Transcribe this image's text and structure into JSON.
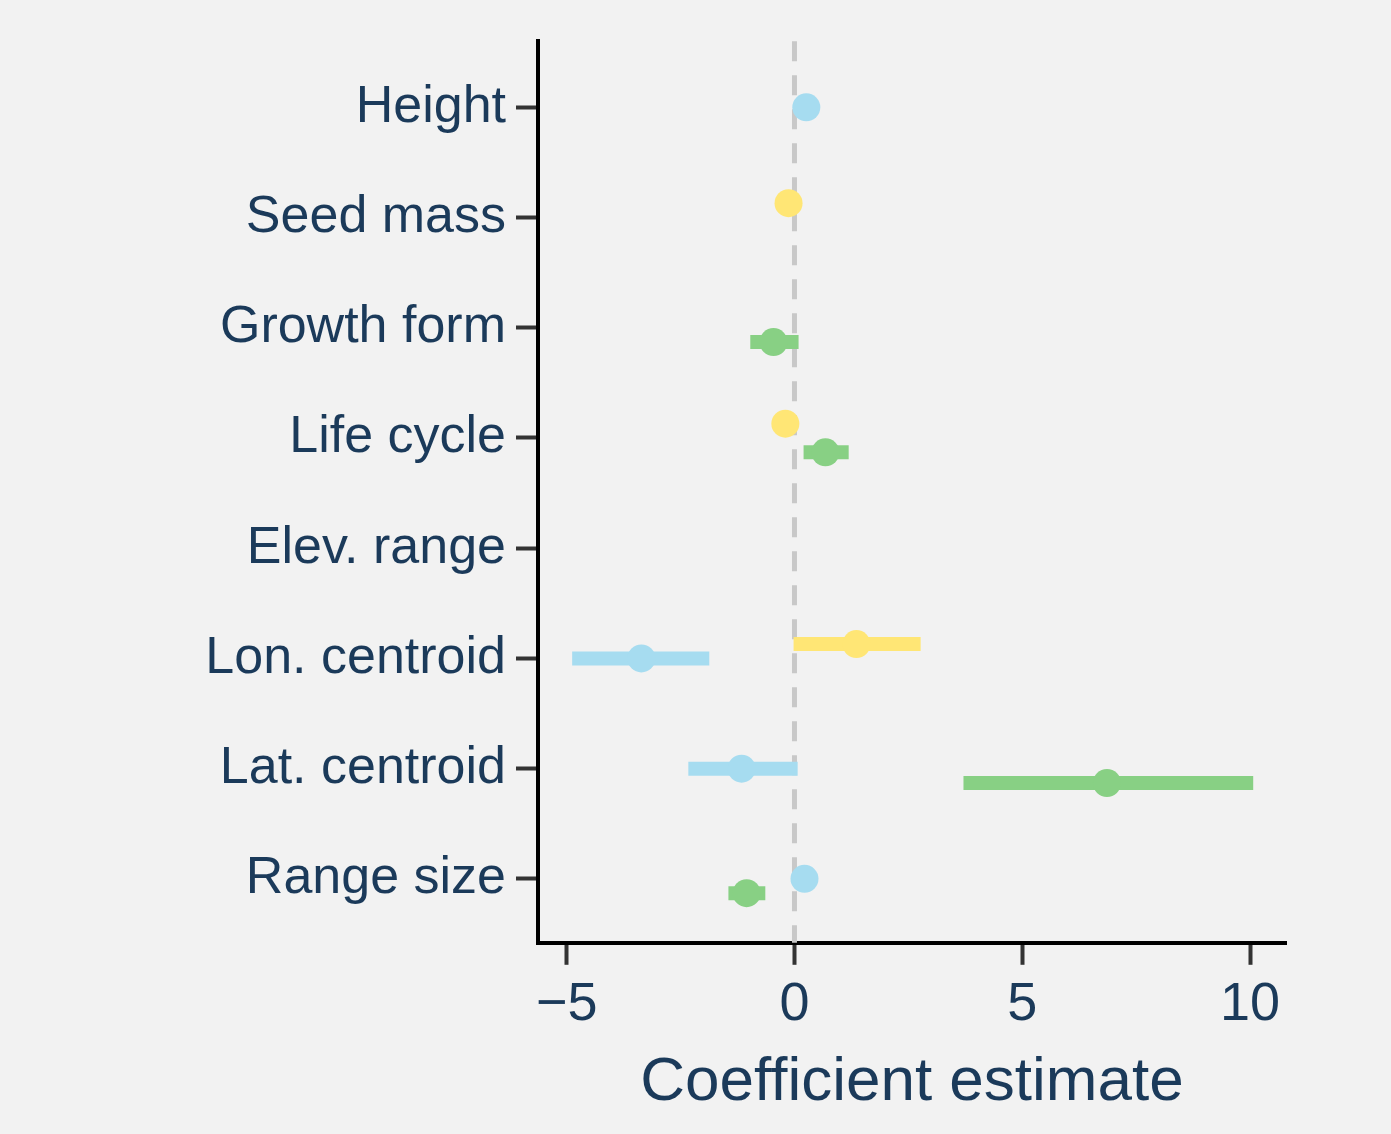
{
  "chart_data": {
    "type": "scatter",
    "orientation": "horizontal",
    "xlabel": "Coefficient estimate",
    "categories": [
      "Height",
      "Seed mass",
      "Growth form",
      "Life cycle",
      "Elev. range",
      "Lon. centroid",
      "Lat. centroid",
      "Range size"
    ],
    "series": [
      {
        "color": "#ffe675",
        "values": [
          null,
          -0.13,
          null,
          -0.2,
          null,
          1.36,
          null,
          null
        ],
        "errors": [
          null,
          null,
          null,
          null,
          null,
          [
            -0.02,
            2.77
          ],
          null,
          null
        ]
      },
      {
        "color": "#a6dcf0",
        "values": [
          0.26,
          null,
          null,
          null,
          null,
          -3.36,
          -1.16,
          0.22
        ],
        "errors": [
          null,
          null,
          null,
          null,
          null,
          [
            -4.88,
            -1.87
          ],
          [
            -2.33,
            0.07
          ],
          null
        ]
      },
      {
        "color": "#88d084",
        "values": [
          null,
          null,
          -0.46,
          0.68,
          null,
          null,
          6.86,
          -1.05
        ],
        "errors": [
          null,
          null,
          [
            -0.97,
            0.09
          ],
          [
            0.2,
            1.19
          ],
          null,
          null,
          [
            3.71,
            10.07
          ],
          [
            -1.45,
            -0.64
          ]
        ]
      }
    ],
    "xlim": [
      -5.63,
      10.79
    ],
    "xticks": [
      {
        "value": -5,
        "label": "−5"
      },
      0,
      5,
      10
    ],
    "ref_lines": [
      {
        "axis": "x",
        "value": 0,
        "color": "#c8c8c8",
        "line_style": "dashed"
      }
    ],
    "marker": "circle"
  }
}
